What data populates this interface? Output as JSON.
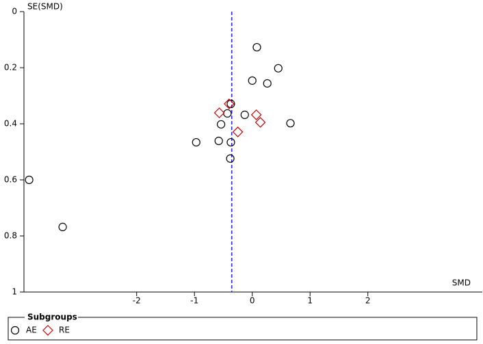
{
  "chart_data": {
    "type": "scatter",
    "x_label": "SMD",
    "y_label": "SE(SMD)",
    "xlim": [
      -3.95,
      3.98
    ],
    "xticks": [
      -2,
      -1,
      0,
      1,
      2
    ],
    "ylim": [
      0,
      1
    ],
    "yticks": [
      0,
      0.2,
      0.4,
      0.6,
      0.8,
      1
    ],
    "y_inverted": true,
    "reference_line": {
      "x": -0.355,
      "color": "#2222ee"
    },
    "legend_title": "Subgroups",
    "legend_position": "bottom",
    "series": [
      {
        "name": "AE",
        "color": "#000000",
        "marker": "circle",
        "x": [
          0.08,
          0.45,
          0.0,
          0.26,
          -0.37,
          -0.43,
          -0.13,
          -0.54,
          0.66,
          -0.97,
          -0.58,
          -0.37,
          -0.38,
          -3.86,
          -3.28
        ],
        "values": [
          0.127,
          0.202,
          0.246,
          0.256,
          0.329,
          0.363,
          0.368,
          0.402,
          0.398,
          0.466,
          0.461,
          0.466,
          0.524,
          0.6,
          0.768
        ]
      },
      {
        "name": "RE",
        "color": "#cc0000",
        "marker": "diamond",
        "x": [
          -0.4,
          -0.57,
          0.07,
          0.14,
          -0.25
        ],
        "values": [
          0.329,
          0.361,
          0.368,
          0.395,
          0.429
        ]
      }
    ]
  }
}
